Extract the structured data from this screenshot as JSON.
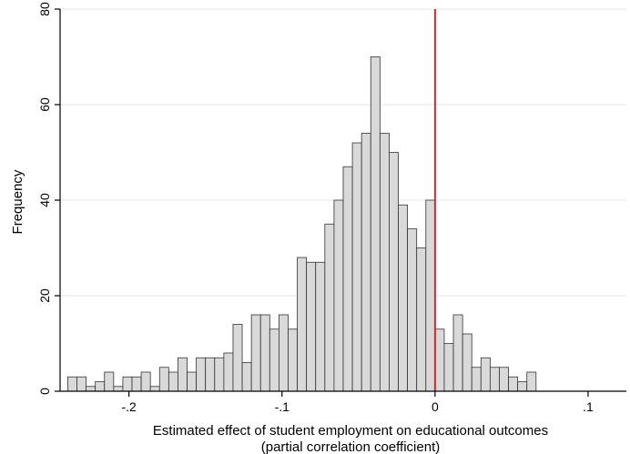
{
  "chart_data": {
    "type": "bar",
    "title": "",
    "xlabel": "Estimated effect of student employment on educational outcomes",
    "xlabel2": "(partial correlation coefficient)",
    "ylabel": "Frequency",
    "xlim": [
      -0.245,
      0.125
    ],
    "ylim": [
      0,
      80
    ],
    "yticks": [
      0,
      20,
      40,
      60,
      80
    ],
    "ytick_labels": [
      "0",
      "20",
      "40",
      "60",
      "80"
    ],
    "xticks": [
      -0.2,
      -0.1,
      0,
      0.1
    ],
    "xtick_labels": [
      "-.2",
      "-.1",
      "0",
      ".1"
    ],
    "grid": true,
    "legend": "none",
    "bin_width": 0.006,
    "bin_start": -0.24,
    "values": [
      3,
      3,
      1,
      2,
      4,
      1,
      3,
      3,
      4,
      1,
      5,
      4,
      7,
      4,
      7,
      7,
      7,
      8,
      14,
      6,
      16,
      16,
      13,
      16,
      13,
      28,
      27,
      27,
      35,
      40,
      47,
      52,
      54,
      70,
      54,
      50,
      39,
      34,
      30,
      40,
      13,
      10,
      16,
      12,
      5,
      7,
      5,
      5,
      3,
      2,
      4
    ],
    "reference_line_x": 0,
    "colors": {
      "bar_fill": "#d9d9d9",
      "bar_edge": "#333333",
      "reference_line": "#e8202a",
      "grid": "#e6e6e6",
      "axis": "#000000"
    }
  }
}
